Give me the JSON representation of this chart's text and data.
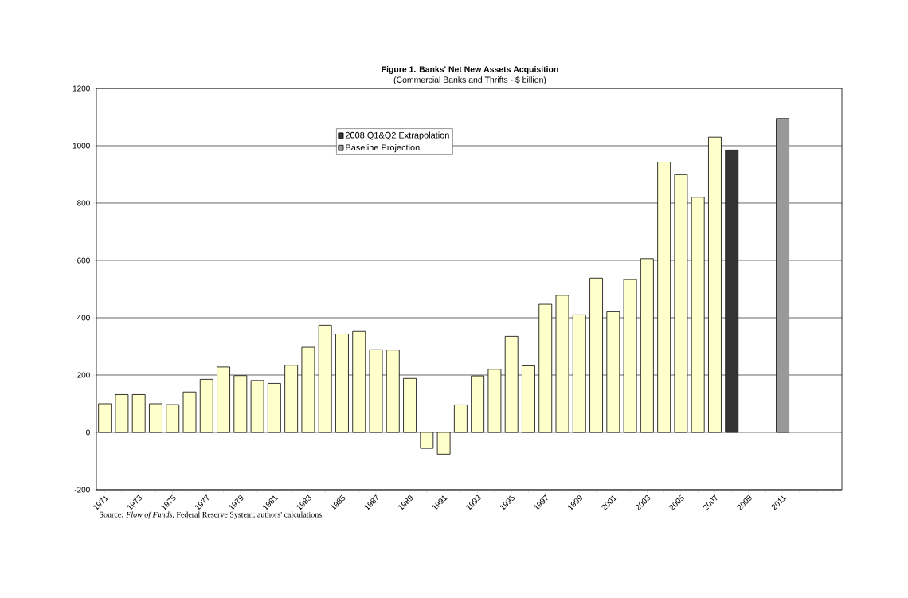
{
  "chart_data": {
    "type": "bar",
    "title": "Figure 1. Banks' Net New Assets Acquisition",
    "subtitle": "(Commercial Banks and Thrifts - $ billion)",
    "categories": [
      "1971",
      null,
      "1973",
      null,
      "1975",
      null,
      "1977",
      null,
      "1979",
      null,
      "1981",
      null,
      "1983",
      null,
      "1985",
      null,
      "1987",
      null,
      "1989",
      null,
      "1991",
      null,
      "1993",
      null,
      "1995",
      null,
      "1997",
      null,
      "1999",
      null,
      "2001",
      null,
      "2003",
      null,
      "2005",
      null,
      "2007",
      null,
      "2009",
      null,
      "2011",
      null,
      null,
      null
    ],
    "series": [
      {
        "color": "#ffffcc",
        "values": [
          100,
          132,
          132,
          100,
          97,
          141,
          185,
          228,
          198,
          181,
          171,
          234,
          297,
          374,
          343,
          352,
          288,
          287,
          188,
          -56,
          -76,
          96,
          197,
          220,
          335,
          232,
          447,
          478,
          410,
          538,
          421,
          533,
          606,
          943,
          899,
          820,
          1030,
          null,
          null,
          null,
          null,
          null,
          null,
          null
        ]
      },
      {
        "name": "2008 Q1&Q2 Extrapolation",
        "color": "#333333",
        "values": [
          null,
          null,
          null,
          null,
          null,
          null,
          null,
          null,
          null,
          null,
          null,
          null,
          null,
          null,
          null,
          null,
          null,
          null,
          null,
          null,
          null,
          null,
          null,
          null,
          null,
          null,
          null,
          null,
          null,
          null,
          null,
          null,
          null,
          null,
          null,
          null,
          null,
          985,
          null,
          null,
          null,
          null,
          null,
          null
        ]
      },
      {
        "name": "Baseline Projection",
        "color": "#999999",
        "values": [
          null,
          null,
          null,
          null,
          null,
          null,
          null,
          null,
          null,
          null,
          null,
          null,
          null,
          null,
          null,
          null,
          null,
          null,
          null,
          null,
          null,
          null,
          null,
          null,
          null,
          null,
          null,
          null,
          null,
          null,
          null,
          null,
          null,
          null,
          null,
          null,
          null,
          null,
          null,
          null,
          1095,
          null,
          null,
          null
        ]
      }
    ],
    "ylim": [
      -200,
      1200
    ],
    "yticks": [
      -200,
      0,
      200,
      400,
      600,
      800,
      1000,
      1200
    ],
    "grid": "y",
    "legend": "top",
    "annotations": [
      "Source: *Flow of Funds,* Federal Reserve System; authors' calculations."
    ]
  }
}
